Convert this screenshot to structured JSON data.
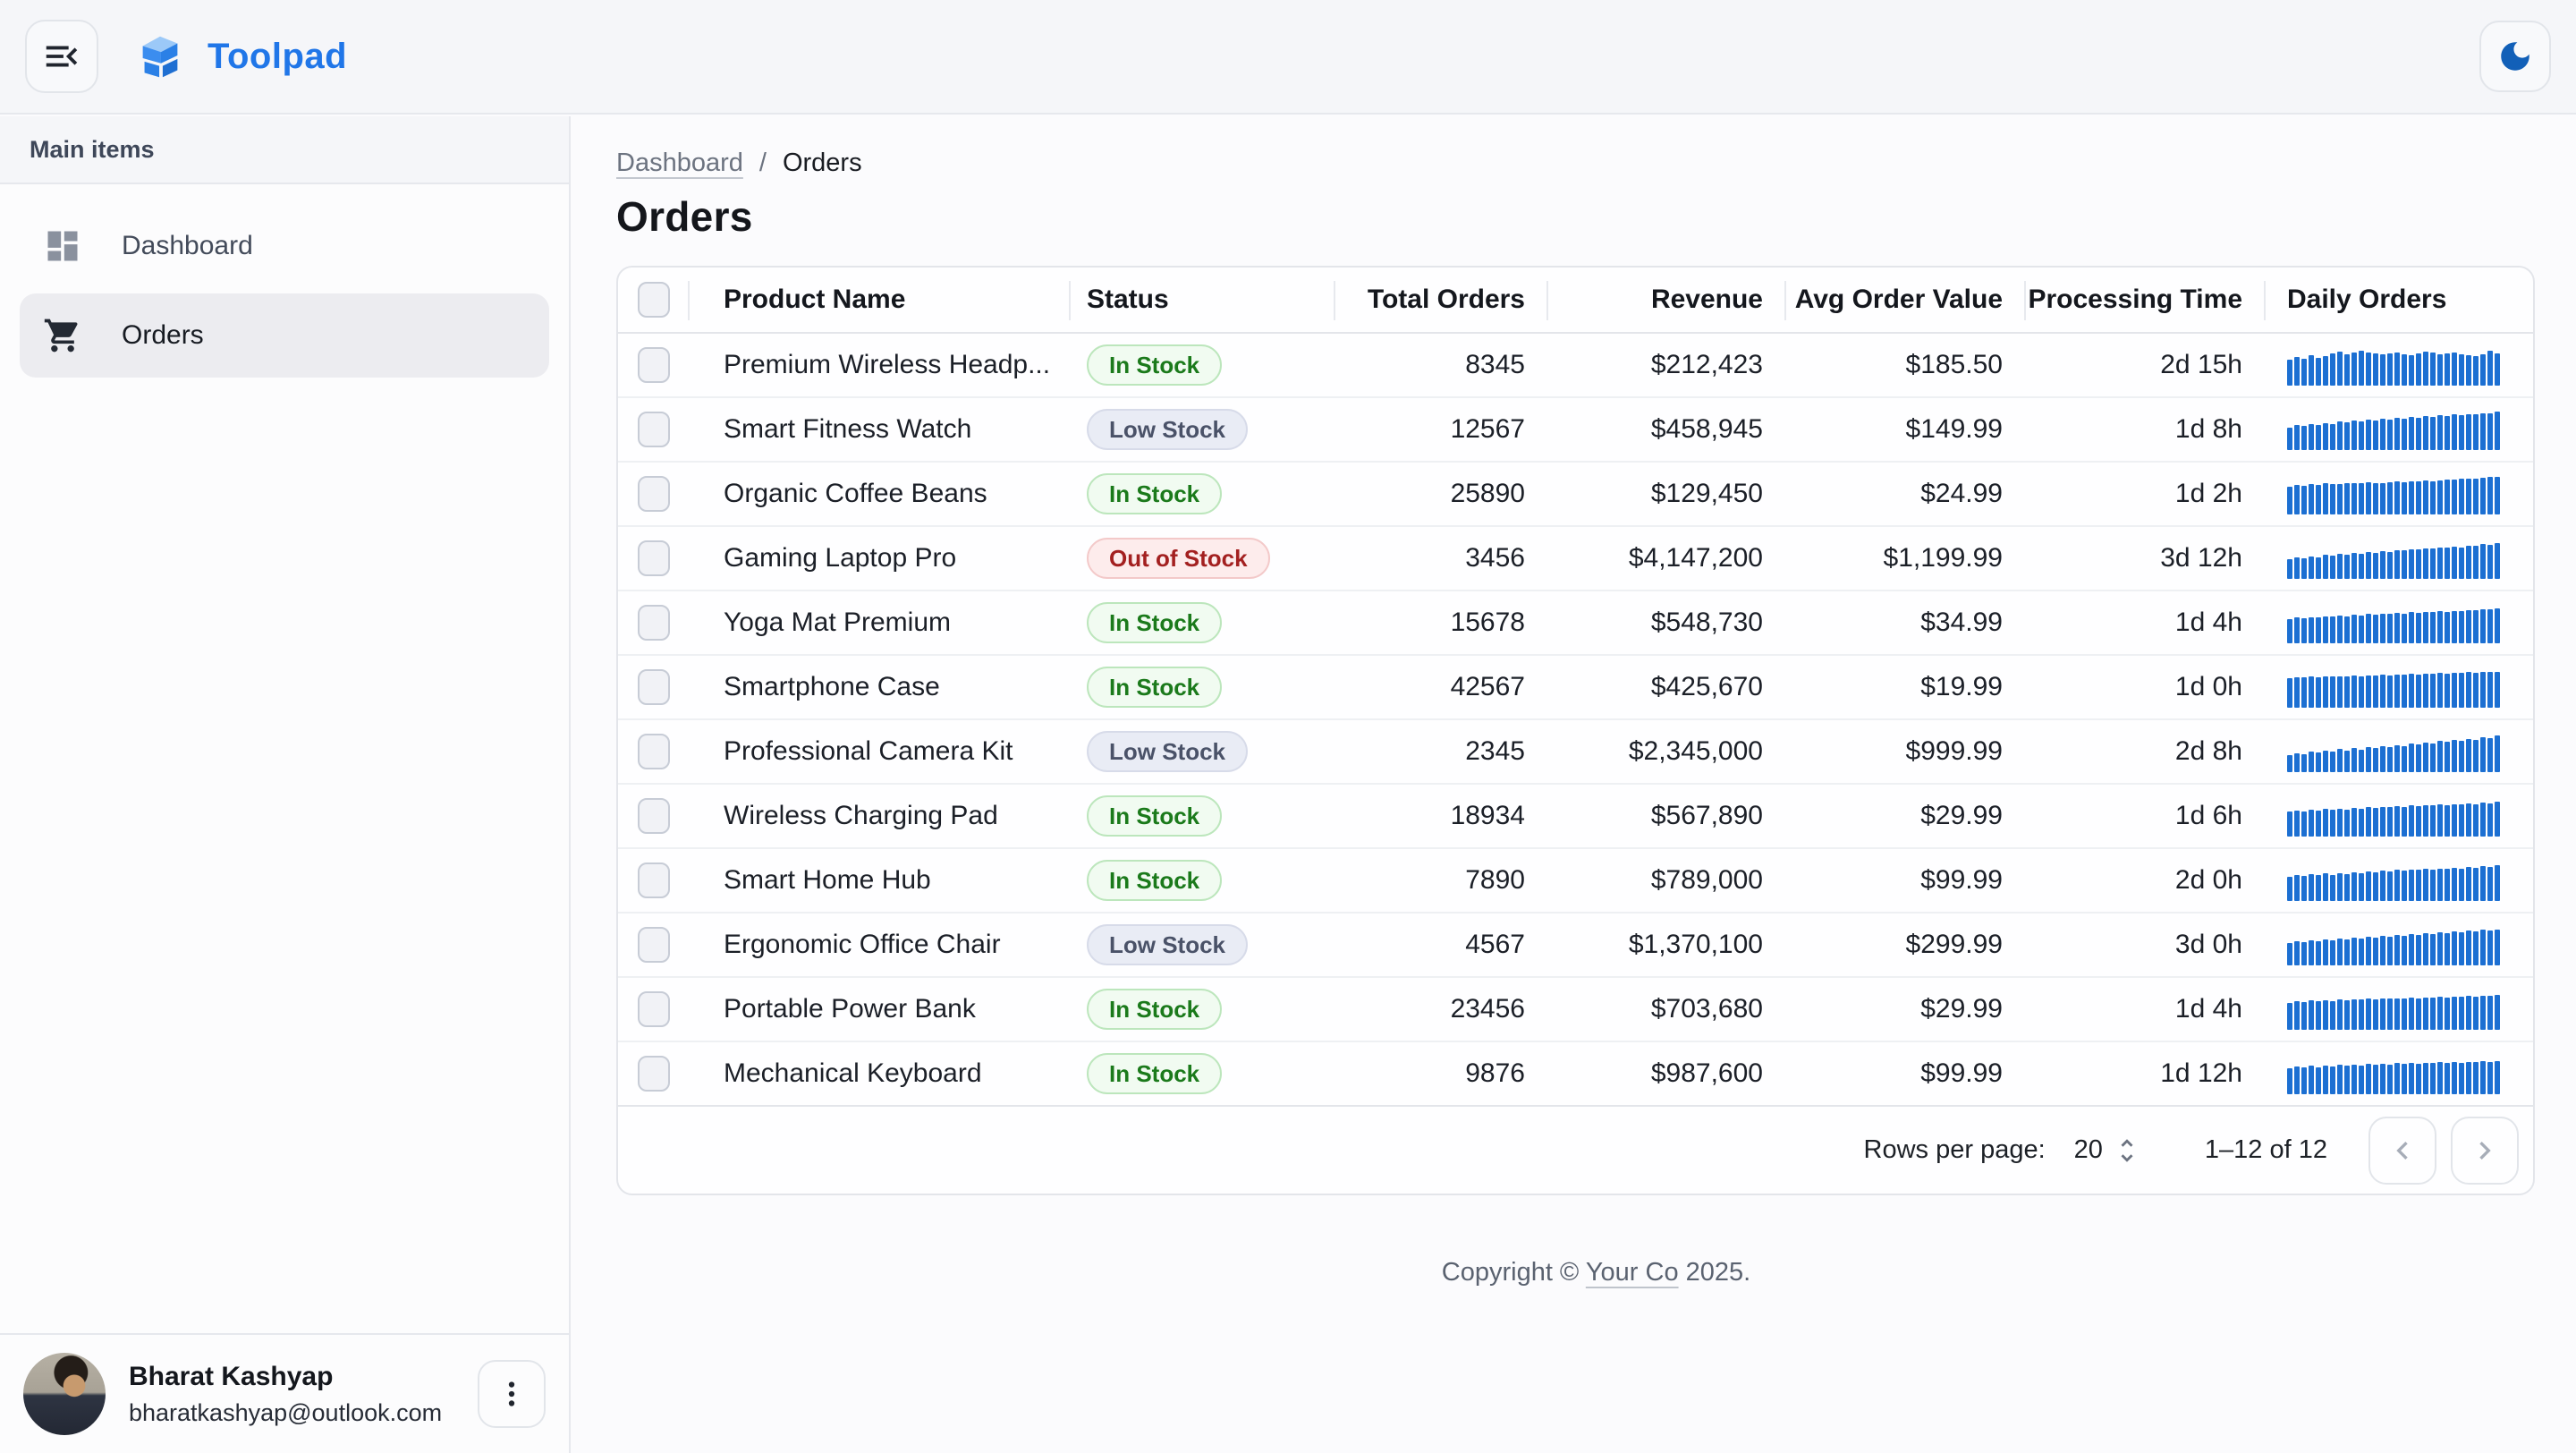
{
  "app": {
    "title": "Toolpad"
  },
  "colors": {
    "brand_blue": "#2076e8",
    "spark_blue": "#1c6fd2",
    "badge_in_stock_text": "#1b7a1b",
    "badge_low_stock_text": "#4a5268",
    "badge_out_of_stock_text": "#a32020",
    "appbar_background": "#f5f6f9",
    "selected_nav_background": "#ececf0"
  },
  "sidebar": {
    "section_label": "Main items",
    "items": [
      {
        "label": "Dashboard",
        "icon": "dashboard-icon",
        "selected": false
      },
      {
        "label": "Orders",
        "icon": "shopping-cart-icon",
        "selected": true
      }
    ]
  },
  "user": {
    "name": "Bharat Kashyap",
    "email": "bharatkashyap@outlook.com"
  },
  "breadcrumb": {
    "items": [
      "Dashboard",
      "Orders"
    ],
    "separator": "/"
  },
  "page": {
    "title": "Orders"
  },
  "table": {
    "columns": [
      {
        "key": "product",
        "label": "Product Name",
        "align": "left"
      },
      {
        "key": "status",
        "label": "Status",
        "align": "left"
      },
      {
        "key": "total_orders",
        "label": "Total Orders",
        "align": "right"
      },
      {
        "key": "revenue",
        "label": "Revenue",
        "align": "right"
      },
      {
        "key": "avg_order_value",
        "label": "Avg Order Value",
        "align": "right"
      },
      {
        "key": "processing_time",
        "label": "Processing Time",
        "align": "right"
      },
      {
        "key": "daily_orders",
        "label": "Daily Orders",
        "align": "left"
      }
    ],
    "rows": [
      {
        "product": "Premium Wireless Headp...",
        "status": "In Stock",
        "total_orders": "8345",
        "revenue": "$212,423",
        "avg_order_value": "$185.50",
        "processing_time": "2d 15h",
        "daily_orders": [
          62,
          70,
          66,
          74,
          68,
          72,
          78,
          82,
          76,
          80,
          84,
          80,
          78,
          76,
          78,
          80,
          76,
          74,
          78,
          82,
          80,
          76,
          78,
          80,
          76,
          74,
          72,
          76,
          84,
          78
        ]
      },
      {
        "product": "Smart Fitness Watch",
        "status": "Low Stock",
        "total_orders": "12567",
        "revenue": "$458,945",
        "avg_order_value": "$149.99",
        "processing_time": "1d 8h",
        "daily_orders": [
          55,
          60,
          58,
          63,
          61,
          66,
          64,
          69,
          67,
          71,
          69,
          73,
          71,
          75,
          74,
          78,
          76,
          80,
          79,
          82,
          81,
          84,
          83,
          86,
          85,
          88,
          87,
          90,
          89,
          94
        ]
      },
      {
        "product": "Organic Coffee Beans",
        "status": "In Stock",
        "total_orders": "25890",
        "revenue": "$129,450",
        "avg_order_value": "$24.99",
        "processing_time": "1d 2h",
        "daily_orders": [
          68,
          72,
          70,
          74,
          72,
          76,
          74,
          73,
          75,
          77,
          76,
          78,
          77,
          76,
          78,
          80,
          79,
          81,
          80,
          82,
          81,
          83,
          85,
          84,
          86,
          88,
          87,
          90,
          92,
          91
        ]
      },
      {
        "product": "Gaming Laptop Pro",
        "status": "Out of Stock",
        "total_orders": "3456",
        "revenue": "$4,147,200",
        "avg_order_value": "$1,199.99",
        "processing_time": "3d 12h",
        "daily_orders": [
          48,
          52,
          50,
          55,
          53,
          58,
          56,
          60,
          59,
          63,
          61,
          65,
          64,
          68,
          66,
          70,
          69,
          72,
          71,
          74,
          73,
          76,
          75,
          78,
          77,
          81,
          80,
          84,
          83,
          88
        ]
      },
      {
        "product": "Yoga Mat Premium",
        "status": "In Stock",
        "total_orders": "15678",
        "revenue": "$548,730",
        "avg_order_value": "$34.99",
        "processing_time": "1d 4h",
        "daily_orders": [
          58,
          62,
          60,
          64,
          62,
          66,
          65,
          68,
          66,
          70,
          68,
          71,
          70,
          72,
          71,
          74,
          72,
          75,
          74,
          76,
          75,
          78,
          77,
          79,
          78,
          81,
          80,
          83,
          82,
          85
        ]
      },
      {
        "product": "Smartphone Case",
        "status": "In Stock",
        "total_orders": "42567",
        "revenue": "$425,670",
        "avg_order_value": "$19.99",
        "processing_time": "1d 0h",
        "daily_orders": [
          72,
          74,
          73,
          75,
          74,
          76,
          75,
          77,
          76,
          78,
          77,
          79,
          78,
          80,
          79,
          81,
          80,
          82,
          81,
          83,
          82,
          84,
          83,
          85,
          84,
          86,
          85,
          87,
          86,
          88
        ]
      },
      {
        "product": "Professional Camera Kit",
        "status": "Low Stock",
        "total_orders": "2345",
        "revenue": "$2,345,000",
        "avg_order_value": "$999.99",
        "processing_time": "2d 8h",
        "daily_orders": [
          42,
          46,
          44,
          50,
          47,
          53,
          50,
          56,
          53,
          58,
          55,
          61,
          58,
          63,
          61,
          66,
          64,
          69,
          67,
          72,
          70,
          75,
          73,
          78,
          76,
          81,
          79,
          85,
          83,
          90
        ]
      },
      {
        "product": "Wireless Charging Pad",
        "status": "In Stock",
        "total_orders": "18934",
        "revenue": "$567,890",
        "avg_order_value": "$29.99",
        "processing_time": "1d 6h",
        "daily_orders": [
          60,
          63,
          61,
          65,
          63,
          67,
          65,
          68,
          66,
          69,
          68,
          71,
          70,
          72,
          71,
          73,
          72,
          75,
          74,
          76,
          75,
          78,
          77,
          79,
          78,
          80,
          79,
          82,
          81,
          84
        ]
      },
      {
        "product": "Smart Home Hub",
        "status": "In Stock",
        "total_orders": "7890",
        "revenue": "$789,000",
        "avg_order_value": "$99.99",
        "processing_time": "2d 0h",
        "daily_orders": [
          58,
          62,
          60,
          65,
          62,
          67,
          64,
          68,
          66,
          70,
          68,
          72,
          70,
          73,
          72,
          75,
          73,
          76,
          75,
          78,
          76,
          79,
          78,
          81,
          79,
          82,
          81,
          84,
          83,
          86
        ]
      },
      {
        "product": "Ergonomic Office Chair",
        "status": "Low Stock",
        "total_orders": "4567",
        "revenue": "$1,370,100",
        "avg_order_value": "$299.99",
        "processing_time": "3d 0h",
        "daily_orders": [
          54,
          58,
          56,
          61,
          58,
          63,
          60,
          65,
          63,
          67,
          65,
          69,
          67,
          71,
          70,
          74,
          72,
          76,
          74,
          78,
          76,
          80,
          78,
          82,
          80,
          84,
          82,
          86,
          84,
          88
        ]
      },
      {
        "product": "Portable Power Bank",
        "status": "In Stock",
        "total_orders": "23456",
        "revenue": "$703,680",
        "avg_order_value": "$29.99",
        "processing_time": "1d 4h",
        "daily_orders": [
          66,
          69,
          67,
          71,
          69,
          72,
          70,
          73,
          72,
          74,
          73,
          75,
          74,
          76,
          75,
          77,
          76,
          78,
          77,
          79,
          78,
          80,
          79,
          81,
          80,
          82,
          81,
          83,
          82,
          84
        ]
      },
      {
        "product": "Mechanical Keyboard",
        "status": "In Stock",
        "total_orders": "9876",
        "revenue": "$987,600",
        "avg_order_value": "$99.99",
        "processing_time": "1d 12h",
        "daily_orders": [
          64,
          67,
          65,
          69,
          66,
          70,
          68,
          71,
          69,
          72,
          70,
          73,
          72,
          74,
          72,
          75,
          73,
          76,
          74,
          77,
          75,
          78,
          76,
          78,
          77,
          79,
          78,
          80,
          79,
          81
        ]
      }
    ]
  },
  "pagination": {
    "rows_per_page_label": "Rows per page:",
    "rows_per_page": "20",
    "range": "1–12 of 12"
  },
  "footer": {
    "prefix": "Copyright © ",
    "link": "Your Co",
    "suffix": " 2025."
  }
}
